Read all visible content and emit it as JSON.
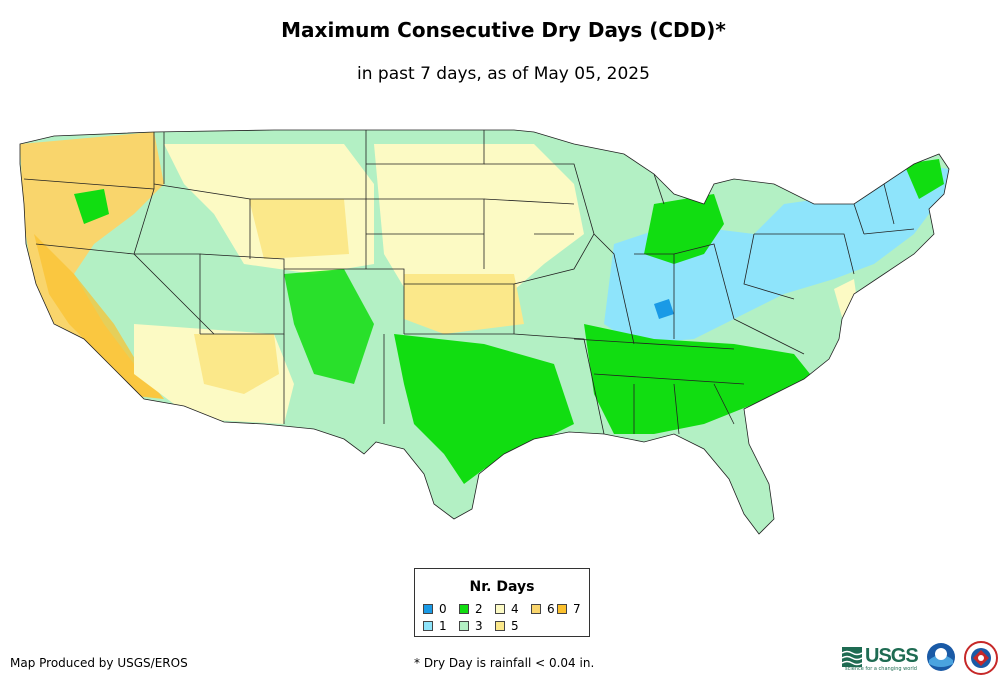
{
  "title": "Maximum Consecutive Dry Days (CDD)*",
  "subtitle": "in past 7 days, as of May 05, 2025",
  "legend": {
    "title": "Nr. Days",
    "items": [
      {
        "label": "0",
        "color": "#1a9ae6"
      },
      {
        "label": "1",
        "color": "#8ee4fb"
      },
      {
        "label": "2",
        "color": "#11dd11"
      },
      {
        "label": "3",
        "color": "#b3f0c4"
      },
      {
        "label": "4",
        "color": "#fcfac4"
      },
      {
        "label": "5",
        "color": "#fbe88a"
      },
      {
        "label": "6",
        "color": "#f9d56c"
      },
      {
        "label": "7",
        "color": "#fbc02d"
      }
    ]
  },
  "footer": {
    "credit": "Map Produced by USGS/EROS",
    "note": "* Dry Day is rainfall < 0.04 in."
  },
  "logos": {
    "usgs": "USGS",
    "usgs_tagline": "science for a changing world",
    "noaa": "noaa",
    "nws": "NWS"
  }
}
